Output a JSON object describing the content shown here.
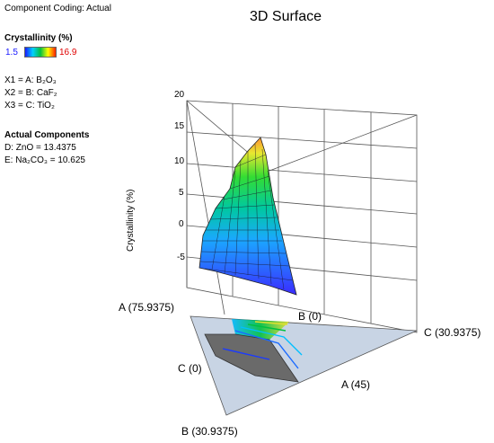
{
  "panel": {
    "coding": "Component Coding: Actual",
    "response_title": "Crystallinity  (%)",
    "legend_min": "1.5",
    "legend_max": "16.9",
    "legend_colors": [
      "#1a1aff",
      "#00d0ff",
      "#00c040",
      "#ffff00",
      "#ff2000"
    ],
    "x1": "X1 = A: B₂O₃",
    "x2": "X2 = B: CaF₂",
    "x3": "X3 = C: TiO₂",
    "actual_heading": "Actual Components",
    "comp_d": "D: ZnO = 13.4375",
    "comp_e": "E: Na₂CO₃  = 10.625"
  },
  "chart_data": {
    "type": "surface3d",
    "title": "3D Surface",
    "zlabel": "Crystallinity  (%)",
    "zlim": [
      -5,
      20
    ],
    "z_ticks": [
      "20",
      "15",
      "10",
      "5",
      "0",
      "-5"
    ],
    "vertex_labels": {
      "a_max": "A (75.9375)",
      "b_min": "B (0)",
      "c_max": "C (30.9375)",
      "c_min": "C (0)",
      "a_min": "A (45)",
      "b_max": "B (30.9375)"
    },
    "response_range": [
      1.5,
      16.9
    ]
  }
}
